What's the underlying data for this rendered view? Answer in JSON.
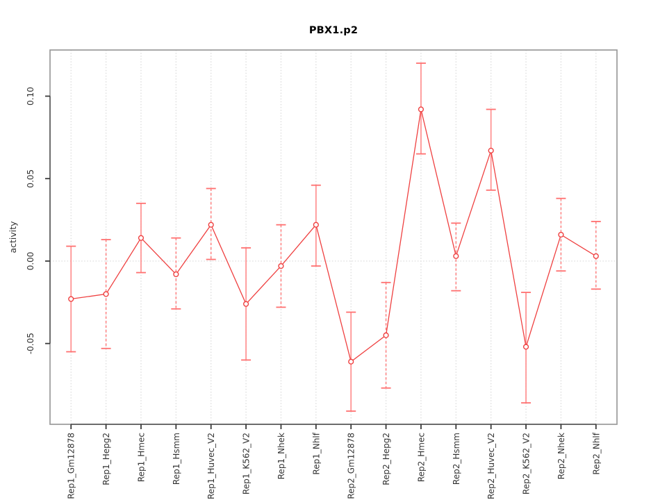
{
  "chart_data": {
    "type": "line",
    "title": "PBX1.p2",
    "xlabel": "",
    "ylabel": "activity",
    "categories": [
      "Rep1_Gm12878",
      "Rep1_Hepg2",
      "Rep1_Hmec",
      "Rep1_Hsmm",
      "Rep1_Huvec_V2",
      "Rep1_K562_V2",
      "Rep1_Nhek",
      "Rep1_Nhlf",
      "Rep2_Gm12878",
      "Rep2_Hepg2",
      "Rep2_Hmec",
      "Rep2_Hsmm",
      "Rep2_Huvec_V2",
      "Rep2_K562_V2",
      "Rep2_Nhek",
      "Rep2_Nhlf"
    ],
    "series": [
      {
        "name": "activity",
        "marker": "open-circle",
        "values": [
          -0.023,
          -0.02,
          0.014,
          -0.008,
          0.022,
          -0.026,
          -0.003,
          0.022,
          -0.061,
          -0.045,
          0.092,
          0.003,
          0.067,
          -0.052,
          0.016,
          0.003
        ],
        "error_low": [
          -0.055,
          -0.053,
          -0.007,
          -0.029,
          0.001,
          -0.06,
          -0.028,
          -0.003,
          -0.091,
          -0.077,
          0.065,
          -0.018,
          0.043,
          -0.086,
          -0.006,
          -0.017
        ],
        "error_high": [
          0.009,
          0.013,
          0.035,
          0.014,
          0.044,
          0.008,
          0.022,
          0.046,
          -0.031,
          -0.013,
          0.12,
          0.023,
          0.092,
          -0.019,
          0.038,
          0.024
        ],
        "error_bar_styles": [
          "solid",
          "dashed",
          "solid",
          "dashed",
          "dashed",
          "solid",
          "dashed",
          "solid",
          "solid",
          "dashed",
          "solid",
          "dashed",
          "solid",
          "solid",
          "dashed",
          "dashed"
        ]
      }
    ],
    "ylim": [
      -0.099,
      0.128
    ],
    "yticks": [
      -0.05,
      0.0,
      0.05,
      0.1
    ],
    "ytick_labels": [
      "-0.05",
      "0.00",
      "0.05",
      "0.10"
    ],
    "grid": "dotted vertical line at each category; dotted horizontal line at y=0",
    "legend": "none",
    "colors": {
      "line": "#ef4040",
      "point": "#ef4040",
      "error_bar": "#ff8f8f",
      "error_bar_dashed": "#ff6f6f",
      "error_cap": "#ff7070",
      "grid": "#d8d8d8",
      "box": "#9a9a9a",
      "axis_line": "#606060",
      "tick": "#3a3a3a",
      "text": "#333333",
      "background": "#ffffff"
    }
  }
}
